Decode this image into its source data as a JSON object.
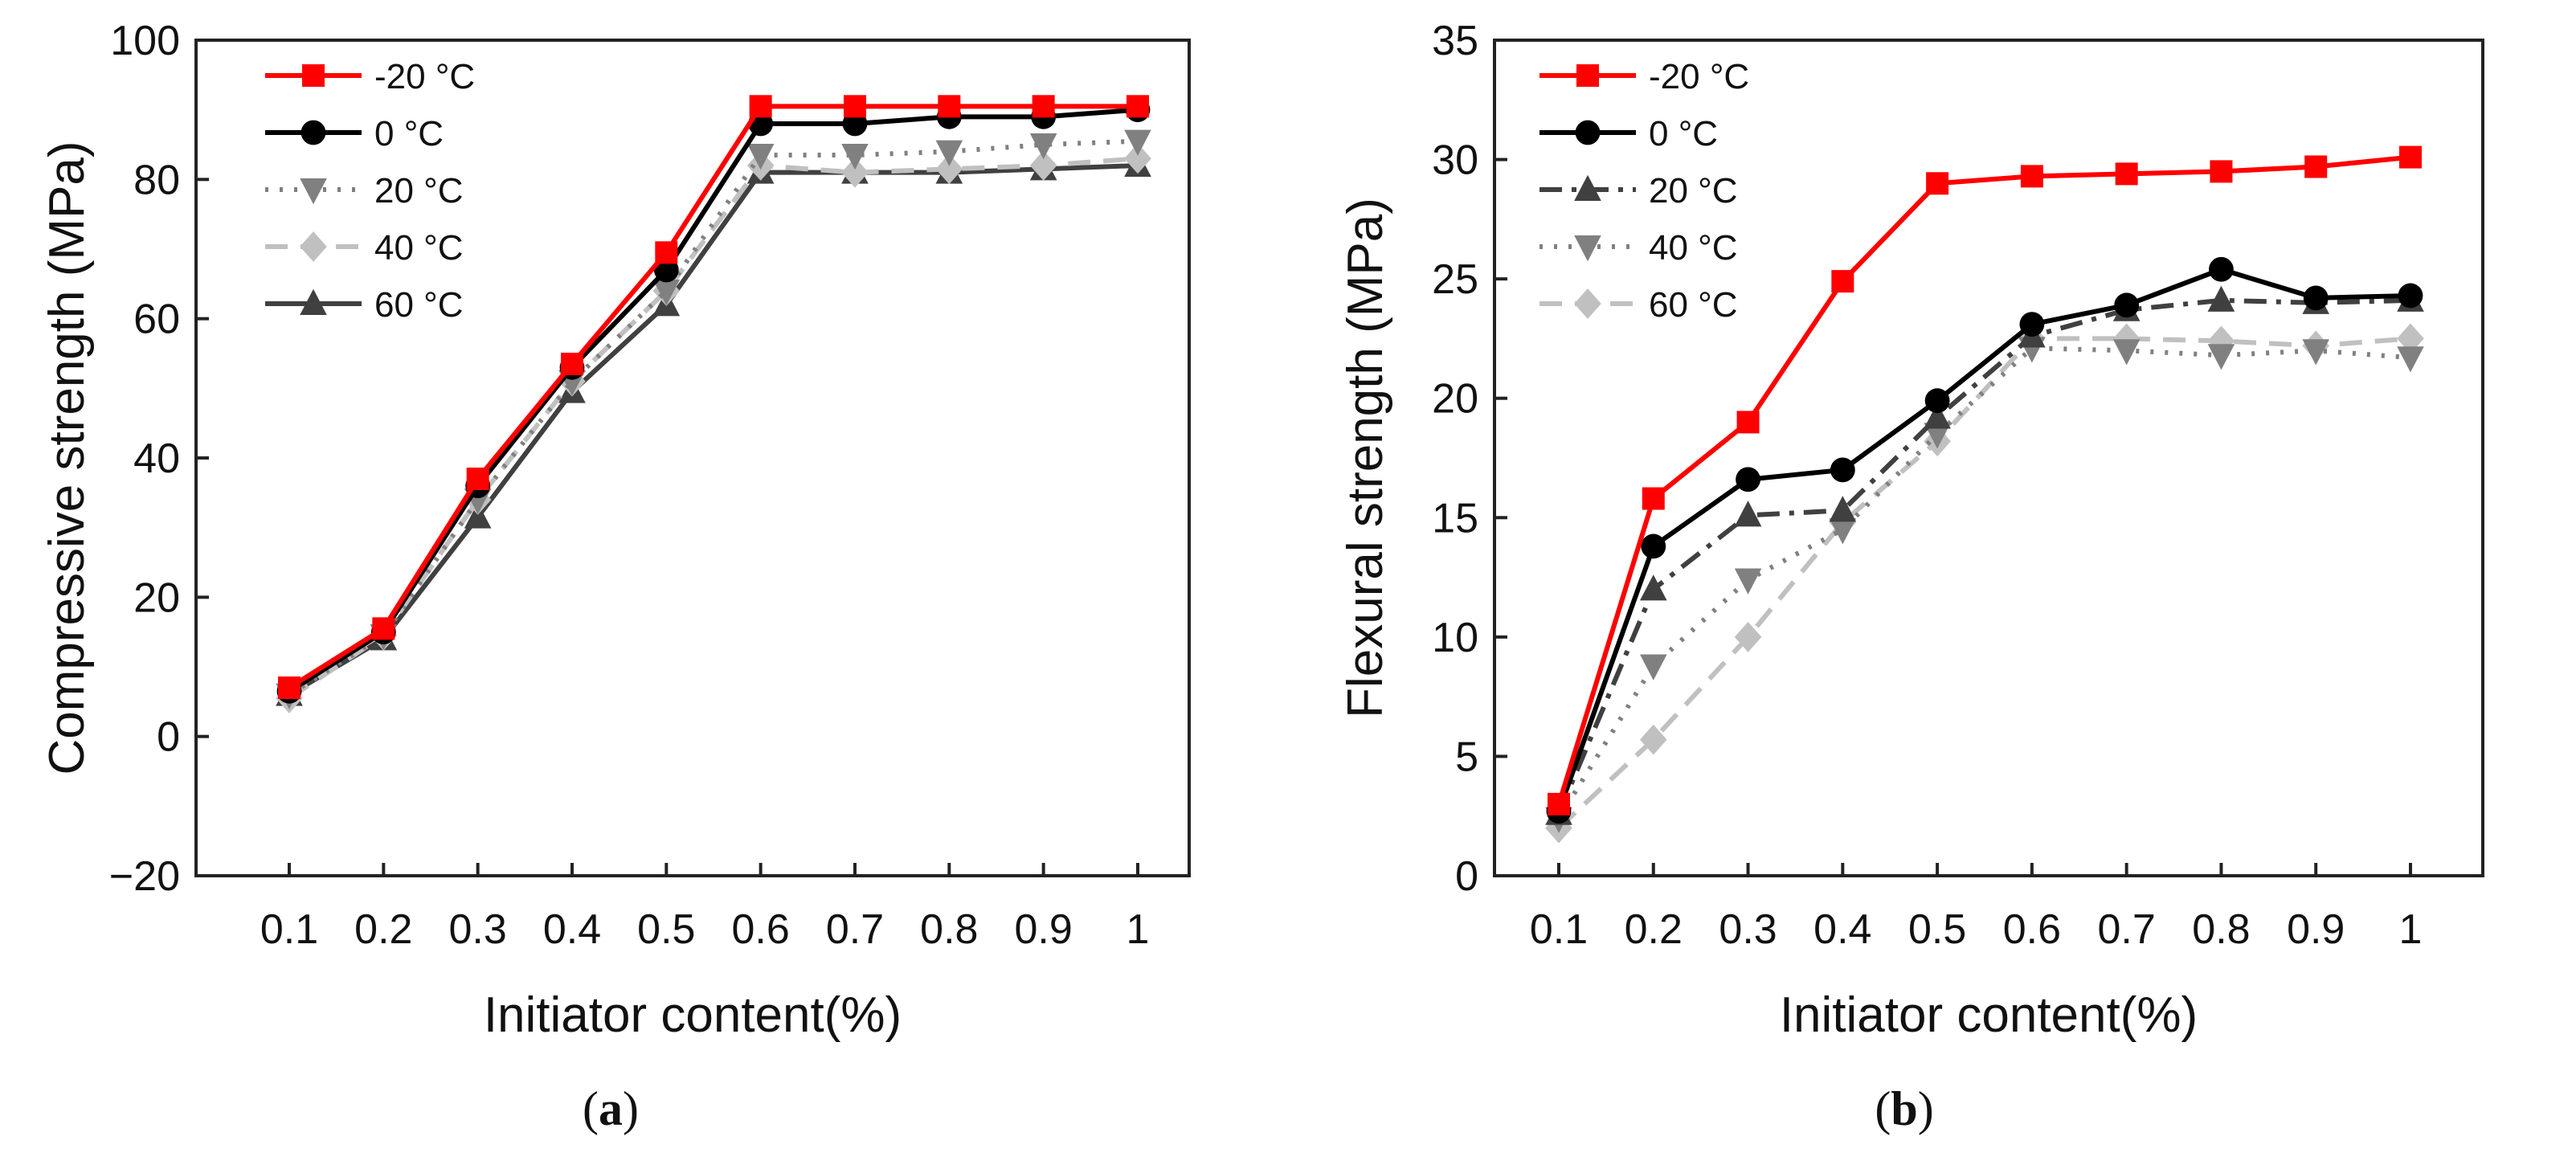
{
  "chart_data": [
    {
      "type": "line",
      "panel_label": "a",
      "xlabel": "Initiator content(%)",
      "ylabel": "Compressive strength (MPa)",
      "x": [
        0.1,
        0.2,
        0.3,
        0.4,
        0.5,
        0.6,
        0.7,
        0.8,
        0.9,
        1
      ],
      "x_tick_labels": [
        "0.1",
        "0.2",
        "0.3",
        "0.4",
        "0.5",
        "0.6",
        "0.7",
        "0.8",
        "0.9",
        "1"
      ],
      "ylim": [
        -20,
        100
      ],
      "y_ticks": [
        -20,
        0,
        20,
        40,
        60,
        80,
        100
      ],
      "y_tick_labels": [
        "−20",
        "0",
        "20",
        "40",
        "60",
        "80",
        "100"
      ],
      "legend_position": "top-left",
      "series": [
        {
          "name": "-20 °C",
          "color": "#ff0000",
          "marker": "square",
          "dash": "solid",
          "values": [
            7,
            15.5,
            37,
            53.5,
            69.5,
            90.5,
            90.5,
            90.5,
            90.5,
            90.5
          ]
        },
        {
          "name": "0 °C",
          "color": "#000000",
          "marker": "circle",
          "dash": "solid",
          "values": [
            6.5,
            15,
            36,
            53,
            67,
            88,
            88,
            89,
            89,
            90
          ]
        },
        {
          "name": "20 °C",
          "color": "#808080",
          "marker": "triangle-down",
          "dash": "dotted",
          "values": [
            6,
            14.5,
            34,
            51,
            64,
            83.5,
            83.5,
            84,
            85,
            85.5
          ]
        },
        {
          "name": "40 °C",
          "color": "#c0c0c0",
          "marker": "diamond",
          "dash": "dashed",
          "values": [
            5.5,
            14.5,
            34,
            51,
            64,
            82,
            81,
            81.5,
            82,
            83
          ]
        },
        {
          "name": "60 °C",
          "color": "#404040",
          "marker": "triangle-up",
          "dash": "solid",
          "values": [
            6,
            14,
            31.5,
            49.5,
            62,
            81,
            81,
            81,
            81.5,
            82
          ]
        }
      ]
    },
    {
      "type": "line",
      "panel_label": "b",
      "xlabel": "Initiator content(%)",
      "ylabel": "Flexural strength (MPa)",
      "x": [
        0.1,
        0.2,
        0.3,
        0.4,
        0.5,
        0.6,
        0.7,
        0.8,
        0.9,
        1
      ],
      "x_tick_labels": [
        "0.1",
        "0.2",
        "0.3",
        "0.4",
        "0.5",
        "0.6",
        "0.7",
        "0.8",
        "0.9",
        "1"
      ],
      "ylim": [
        0,
        35
      ],
      "y_ticks": [
        0,
        5,
        10,
        15,
        20,
        25,
        30,
        35
      ],
      "y_tick_labels": [
        "0",
        "5",
        "10",
        "15",
        "20",
        "25",
        "30",
        "35"
      ],
      "legend_position": "top-left",
      "series": [
        {
          "name": "-20 °C",
          "color": "#ff0000",
          "marker": "square",
          "dash": "solid",
          "values": [
            3,
            15.8,
            19,
            24.9,
            29,
            29.3,
            29.4,
            29.5,
            29.7,
            30.1
          ]
        },
        {
          "name": "0 °C",
          "color": "#000000",
          "marker": "circle",
          "dash": "solid",
          "values": [
            2.7,
            13.8,
            16.6,
            17,
            19.9,
            23.1,
            23.9,
            25.4,
            24.2,
            24.3
          ]
        },
        {
          "name": "20 °C",
          "color": "#404040",
          "marker": "triangle-up",
          "dash": "dashdot",
          "values": [
            2.6,
            12,
            15.1,
            15.3,
            19.2,
            22.6,
            23.7,
            24.1,
            24,
            24.1
          ]
        },
        {
          "name": "40 °C",
          "color": "#808080",
          "marker": "triangle-down",
          "dash": "dotted",
          "values": [
            2.4,
            8.8,
            12.4,
            14.5,
            18.5,
            22.1,
            22,
            21.8,
            22,
            21.7
          ]
        },
        {
          "name": "60 °C",
          "color": "#c0c0c0",
          "marker": "diamond",
          "dash": "dashed",
          "values": [
            2,
            5.7,
            10,
            14.8,
            18.2,
            22.5,
            22.5,
            22.4,
            22.2,
            22.5
          ]
        }
      ]
    }
  ]
}
